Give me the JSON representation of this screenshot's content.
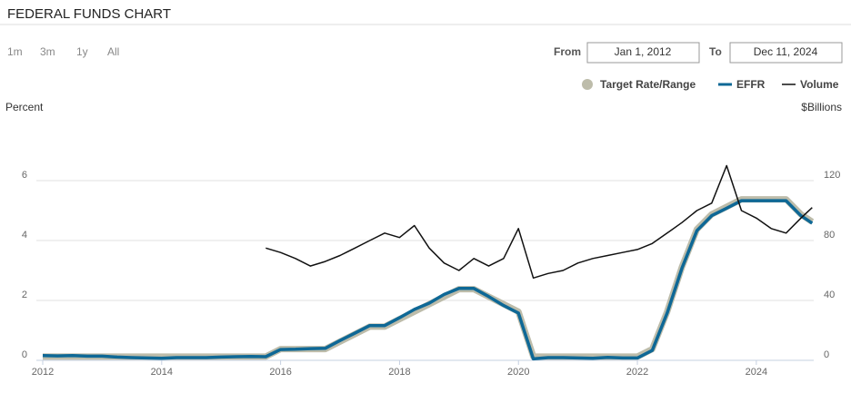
{
  "controls": {
    "ranges": [
      "1m",
      "3m",
      "1y",
      "All"
    ],
    "from_label": "From",
    "from_value": "Jan 1, 2012",
    "to_label": "To",
    "to_value": "Dec 11, 2024"
  },
  "chart_data": {
    "type": "line",
    "title": "FEDERAL FUNDS CHART",
    "y_label": "Percent",
    "y2_label": "$Billions",
    "x": [
      2012,
      2012.25,
      2012.5,
      2012.75,
      2013,
      2013.25,
      2013.5,
      2013.75,
      2014,
      2014.25,
      2014.5,
      2014.75,
      2015,
      2015.25,
      2015.5,
      2015.75,
      2016,
      2016.25,
      2016.5,
      2016.75,
      2017,
      2017.25,
      2017.5,
      2017.75,
      2018,
      2018.25,
      2018.5,
      2018.75,
      2019,
      2019.25,
      2019.5,
      2019.75,
      2020,
      2020.25,
      2020.5,
      2020.75,
      2021,
      2021.25,
      2021.5,
      2021.75,
      2022,
      2022.25,
      2022.5,
      2022.75,
      2023,
      2023.25,
      2023.5,
      2023.75,
      2024,
      2024.25,
      2024.5,
      2024.75,
      2024.94
    ],
    "xlim": [
      2012,
      2024.95
    ],
    "xticks": [
      2012,
      2014,
      2016,
      2018,
      2020,
      2022,
      2024
    ],
    "ylim": [
      0,
      7.8
    ],
    "yticks": [
      0,
      2,
      4,
      6
    ],
    "y2lim": [
      0,
      156
    ],
    "y2ticks": [
      0,
      40,
      80,
      120
    ],
    "grid": true,
    "series": [
      {
        "name": "Target Rate/Range",
        "color": "#bdbcaa",
        "values": [
          0.125,
          0.125,
          0.125,
          0.125,
          0.125,
          0.125,
          0.125,
          0.125,
          0.125,
          0.125,
          0.125,
          0.125,
          0.125,
          0.125,
          0.125,
          0.125,
          0.375,
          0.375,
          0.375,
          0.375,
          0.625,
          0.875,
          1.125,
          1.125,
          1.375,
          1.625,
          1.875,
          2.125,
          2.375,
          2.375,
          2.125,
          1.875,
          1.625,
          0.125,
          0.125,
          0.125,
          0.125,
          0.125,
          0.125,
          0.125,
          0.125,
          0.375,
          1.625,
          3.125,
          4.375,
          4.875,
          5.125,
          5.375,
          5.375,
          5.375,
          5.375,
          4.875,
          4.625
        ]
      },
      {
        "name": "EFFR",
        "color": "#0e6896",
        "values": [
          0.16,
          0.15,
          0.16,
          0.14,
          0.14,
          0.11,
          0.09,
          0.08,
          0.07,
          0.09,
          0.09,
          0.09,
          0.11,
          0.12,
          0.13,
          0.12,
          0.36,
          0.37,
          0.39,
          0.4,
          0.66,
          0.91,
          1.16,
          1.16,
          1.42,
          1.7,
          1.91,
          2.2,
          2.4,
          2.4,
          2.13,
          1.83,
          1.58,
          0.05,
          0.09,
          0.09,
          0.08,
          0.07,
          0.1,
          0.08,
          0.08,
          0.33,
          1.58,
          3.08,
          4.33,
          4.83,
          5.08,
          5.33,
          5.33,
          5.33,
          5.33,
          4.83,
          4.58
        ]
      },
      {
        "name": "Volume",
        "color": "#111111",
        "axis": "y2",
        "values": [
          null,
          null,
          null,
          null,
          null,
          null,
          null,
          null,
          null,
          null,
          null,
          null,
          null,
          null,
          null,
          75,
          72,
          68,
          63,
          66,
          70,
          75,
          80,
          85,
          82,
          90,
          75,
          65,
          60,
          68,
          63,
          68,
          88,
          55,
          58,
          60,
          65,
          68,
          70,
          72,
          74,
          78,
          85,
          92,
          100,
          105,
          130,
          100,
          95,
          88,
          85,
          95,
          102
        ]
      }
    ]
  }
}
